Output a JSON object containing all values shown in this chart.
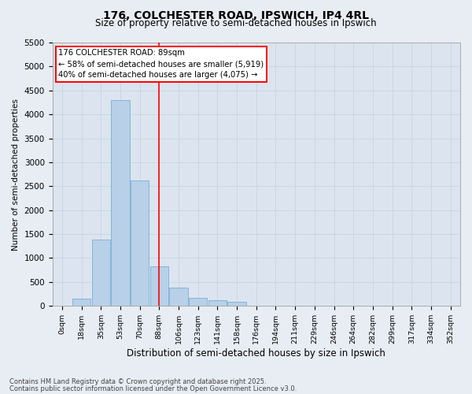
{
  "title_line1": "176, COLCHESTER ROAD, IPSWICH, IP4 4RL",
  "title_line2": "Size of property relative to semi-detached houses in Ipswich",
  "xlabel": "Distribution of semi-detached houses by size in Ipswich",
  "ylabel": "Number of semi-detached properties",
  "categories": [
    "0sqm",
    "18sqm",
    "35sqm",
    "53sqm",
    "70sqm",
    "88sqm",
    "106sqm",
    "123sqm",
    "141sqm",
    "158sqm",
    "176sqm",
    "194sqm",
    "211sqm",
    "229sqm",
    "246sqm",
    "264sqm",
    "282sqm",
    "299sqm",
    "317sqm",
    "334sqm",
    "352sqm"
  ],
  "values": [
    10,
    150,
    1380,
    4300,
    2620,
    820,
    390,
    165,
    115,
    85,
    0,
    0,
    0,
    0,
    0,
    0,
    0,
    0,
    0,
    0,
    0
  ],
  "bar_color": "#b8d0e8",
  "bar_edge_color": "#7aafd4",
  "annotation_text_line1": "176 COLCHESTER ROAD: 89sqm",
  "annotation_text_line2": "← 58% of semi-detached houses are smaller (5,919)",
  "annotation_text_line3": "40% of semi-detached houses are larger (4,075) →",
  "red_line_x": 5.0,
  "ylim_max": 5500,
  "yticks": [
    0,
    500,
    1000,
    1500,
    2000,
    2500,
    3000,
    3500,
    4000,
    4500,
    5000,
    5500
  ],
  "grid_color": "#c8d4e0",
  "bg_color": "#e8edf4",
  "plot_bg_color": "#dce5ef",
  "footer_line1": "Contains HM Land Registry data © Crown copyright and database right 2025.",
  "footer_line2": "Contains public sector information licensed under the Open Government Licence v3.0."
}
